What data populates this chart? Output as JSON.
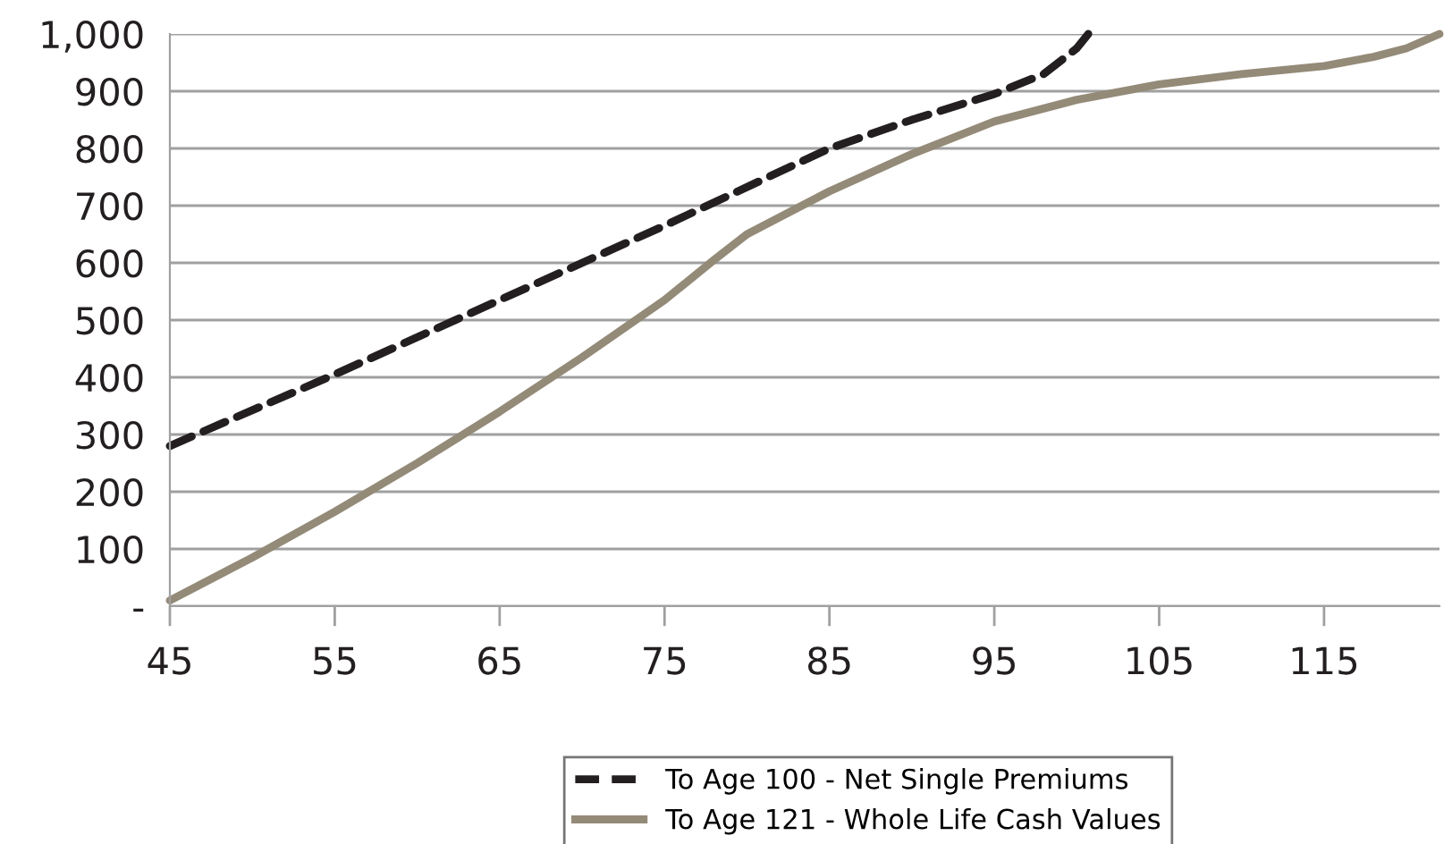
{
  "chart_data": {
    "type": "line",
    "series": [
      {
        "name": "To Age 100 - Net Single Premiums",
        "color": "#231f20",
        "line_style": "dashed",
        "x": [
          45,
          55,
          65,
          75,
          85,
          90,
          95,
          98,
          100,
          100.7
        ],
        "values": [
          280,
          405,
          535,
          665,
          800,
          850,
          895,
          930,
          975,
          1000
        ]
      },
      {
        "name": "To Age 121 - Whole Life Cash Values",
        "color": "#948a78",
        "line_style": "solid",
        "x": [
          45,
          50,
          55,
          60,
          65,
          70,
          75,
          78,
          80,
          85,
          90,
          95,
          100,
          105,
          110,
          115,
          118,
          120,
          122
        ],
        "values": [
          10,
          85,
          165,
          250,
          340,
          435,
          535,
          605,
          650,
          725,
          790,
          847,
          885,
          912,
          930,
          944,
          960,
          975,
          1000
        ]
      }
    ],
    "xlim": [
      45,
      122
    ],
    "xticks": [
      45,
      55,
      65,
      75,
      85,
      95,
      105,
      115
    ],
    "ylim": [
      0,
      1000
    ],
    "yticks": [
      {
        "value": 0,
        "label": "-"
      },
      100,
      200,
      300,
      400,
      500,
      600,
      700,
      800,
      900,
      {
        "value": 1000,
        "label": "1,000"
      }
    ],
    "grid": "y",
    "legend": "bottom",
    "marker": "none"
  }
}
